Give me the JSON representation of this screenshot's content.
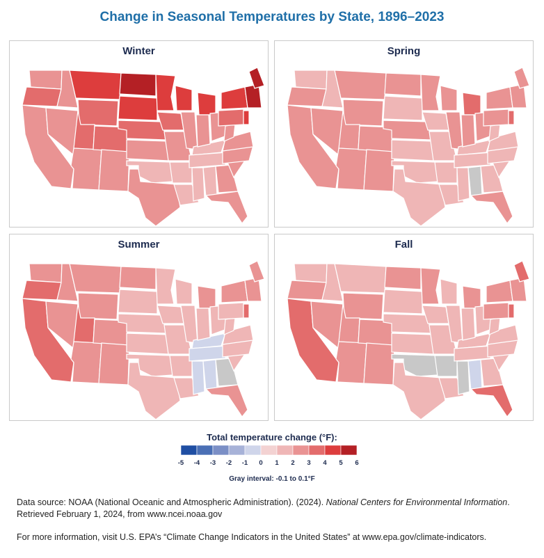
{
  "title": "Change in Seasonal Temperatures by State, 1896–2023",
  "panels": [
    {
      "name": "Winter",
      "categories": {
        "WA": 2,
        "OR": 3,
        "CA": 2,
        "ID": 2,
        "NV": 2,
        "MT": 4,
        "WY": 3,
        "UT": 3,
        "AZ": 2,
        "CO": 3,
        "NM": 2,
        "ND": 5,
        "SD": 4,
        "NE": 3,
        "KS": 2,
        "OK": 1,
        "TX": 2,
        "MN": 4,
        "IA": 3,
        "MO": 2,
        "AR": 1,
        "LA": 1,
        "WI": 4,
        "IL": 2,
        "KY": 1,
        "TN": 1,
        "MS": 1,
        "MI": 4,
        "IN": 2,
        "OH": 2,
        "AL": 1,
        "GA": 2,
        "FL": 2,
        "SC": 2,
        "NC": 2,
        "VA": 2,
        "WV": 2,
        "PA": 3,
        "NY": 4,
        "NJ": 4,
        "NE_STATES": 5,
        "ME": 5
      }
    },
    {
      "name": "Spring",
      "categories": {
        "WA": 1,
        "OR": 2,
        "CA": 2,
        "ID": 1,
        "NV": 2,
        "MT": 2,
        "WY": 2,
        "UT": 2,
        "AZ": 2,
        "CO": 2,
        "NM": 2,
        "ND": 2,
        "SD": 1,
        "NE": 2,
        "KS": 1,
        "OK": 1,
        "TX": 1,
        "MN": 2,
        "IA": 1,
        "MO": 1,
        "AR": 1,
        "LA": 1,
        "WI": 2,
        "IL": 2,
        "KY": 1,
        "TN": 1,
        "MS": 1,
        "MI": 3,
        "IN": 2,
        "OH": 2,
        "AL": "gray",
        "GA": 1,
        "FL": 2,
        "SC": 1,
        "NC": 1,
        "VA": 1,
        "WV": 1,
        "PA": 2,
        "NY": 2,
        "NJ": 3,
        "NE_STATES": 2,
        "ME": 2
      }
    },
    {
      "name": "Summer",
      "categories": {
        "WA": 2,
        "OR": 3,
        "CA": 3,
        "ID": 2,
        "NV": 2,
        "MT": 2,
        "WY": 2,
        "UT": 3,
        "AZ": 2,
        "CO": 2,
        "NM": 2,
        "ND": 2,
        "SD": 1,
        "NE": 1,
        "KS": 1,
        "OK": 1,
        "TX": 1,
        "MN": 1,
        "IA": 1,
        "MO": 1,
        "AR": 1,
        "LA": 1,
        "WI": 1,
        "IL": 1,
        "KY": -1,
        "TN": -1,
        "MS": -1,
        "MI": 2,
        "IN": 1,
        "OH": 1,
        "AL": -1,
        "GA": "gray",
        "FL": 2,
        "SC": 1,
        "NC": 1,
        "VA": 1,
        "WV": 1,
        "PA": 1,
        "NY": 2,
        "NJ": 3,
        "NE_STATES": 2,
        "ME": 2
      }
    },
    {
      "name": "Fall",
      "categories": {
        "WA": 1,
        "OR": 2,
        "CA": 3,
        "ID": 1,
        "NV": 2,
        "MT": 1,
        "WY": 2,
        "UT": 2,
        "AZ": 2,
        "CO": 2,
        "NM": 2,
        "ND": 2,
        "SD": 1,
        "NE": 1,
        "KS": 1,
        "OK": "gray",
        "TX": 1,
        "MN": 2,
        "IA": 1,
        "MO": 1,
        "AR": "gray",
        "LA": 1,
        "WI": 1,
        "IL": 1,
        "KY": 1,
        "TN": 1,
        "MS": "gray",
        "MI": 2,
        "IN": 1,
        "OH": 1,
        "AL": -1,
        "GA": 1,
        "FL": 3,
        "SC": 1,
        "NC": 1,
        "VA": 1,
        "WV": 1,
        "PA": 2,
        "NY": 2,
        "NJ": 3,
        "NE_STATES": 2,
        "ME": 3
      }
    }
  ],
  "legend": {
    "title": "Total temperature change (°F):",
    "ticks": [
      "-5",
      "-4",
      "-3",
      "-2",
      "-1",
      "0",
      "1",
      "2",
      "3",
      "4",
      "5",
      "6"
    ],
    "colors": [
      "#1f4ea3",
      "#4a6fb5",
      "#7b8fc6",
      "#a7b2d8",
      "#cfd5ea",
      "#f3d2d2",
      "#efb6b6",
      "#e99393",
      "#e36c6c",
      "#dd3d3d",
      "#b42025"
    ],
    "gray_color": "#c8c8c8",
    "note": "Gray interval: -0.1 to 0.1°F"
  },
  "source": {
    "prefix": "Data source: NOAA (National Oceanic and Atmospheric Administration). (2024). ",
    "italic": "National Centers for Environmental Information",
    "suffix": ". Retrieved February 1, 2024, from www.ncei.noaa.gov"
  },
  "more_info": "For more information, visit U.S. EPA’s “Climate Change Indicators in the United States” at www.epa.gov/climate-indicators."
}
